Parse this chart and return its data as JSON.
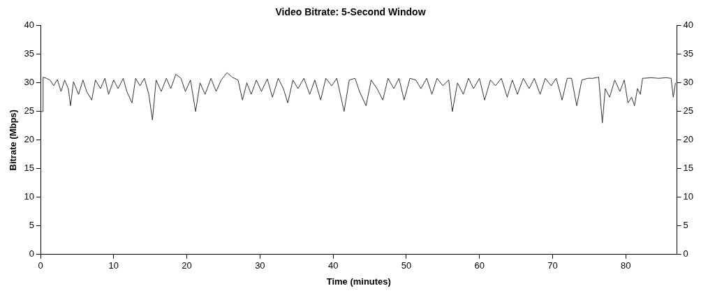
{
  "chart_data": {
    "type": "line",
    "title": "Video Bitrate: 5-Second Window",
    "xlabel": "Time (minutes)",
    "ylabel": "Bitrate (Mbps)",
    "xlim": [
      0,
      87
    ],
    "xticks": [
      0,
      10,
      20,
      30,
      40,
      50,
      60,
      70,
      80
    ],
    "ylim": [
      0,
      40
    ],
    "yticks": [
      0,
      5,
      10,
      15,
      20,
      25,
      30,
      35,
      40
    ],
    "y2lim": [
      0,
      40
    ],
    "y2ticks": [
      0,
      5,
      10,
      15,
      20,
      25,
      30,
      35,
      40
    ],
    "grid": false,
    "legend": false,
    "marker": "none",
    "line_style": "solid",
    "series": [
      {
        "color": "#333333",
        "x": [
          0,
          0.3,
          0.35,
          0.8,
          1.3,
          1.8,
          2.3,
          2.8,
          3.3,
          3.8,
          4.1,
          4.5,
          5.2,
          5.8,
          6.3,
          7,
          7.5,
          8.2,
          8.8,
          9.3,
          10,
          10.6,
          11.3,
          11.8,
          12.5,
          13,
          13.6,
          14.2,
          14.8,
          15.3,
          15.8,
          16.5,
          17.2,
          17.8,
          18.5,
          19.2,
          19.8,
          20.5,
          21.2,
          21.8,
          22.5,
          23.3,
          24,
          24.7,
          25.5,
          26.2,
          27,
          27.6,
          28.2,
          28.8,
          29.5,
          30.2,
          31,
          31.7,
          32.5,
          33.2,
          33.8,
          34.5,
          35.2,
          36,
          36.8,
          37.5,
          38.3,
          39,
          39.8,
          40.5,
          41.5,
          42.2,
          43,
          43.6,
          44.5,
          45.2,
          46,
          46.8,
          47.5,
          48.3,
          49,
          49.7,
          50.5,
          51.3,
          52,
          52.8,
          53.5,
          54.2,
          55,
          55.8,
          56.3,
          57,
          57.8,
          58.5,
          59.2,
          60,
          60.7,
          61.5,
          62.2,
          63,
          63.8,
          64.5,
          65.2,
          66,
          66.8,
          67.5,
          68.3,
          69,
          69.8,
          70.5,
          71.3,
          72,
          72.6,
          73.3,
          74,
          74.8,
          75.5,
          76.3,
          76.8,
          77.2,
          77.8,
          78.5,
          79.2,
          79.8,
          80.3,
          80.8,
          81.2,
          81.6,
          82,
          82.3,
          83.5,
          84.5,
          85.5,
          86.2,
          86.5,
          86.8
        ],
        "values": [
          25,
          25,
          31,
          30.8,
          30.5,
          29.5,
          30.6,
          28.5,
          30.5,
          29,
          26,
          30.2,
          28,
          30.5,
          28.5,
          27,
          30.5,
          29,
          30.8,
          28,
          30.5,
          29,
          30.8,
          28.5,
          26.5,
          30.8,
          29.5,
          30.8,
          28,
          23.5,
          30.5,
          28.5,
          30.8,
          29,
          31.5,
          30.8,
          28.5,
          30.5,
          25,
          30,
          28,
          30.8,
          28.5,
          30.5,
          31.8,
          31,
          30.5,
          27,
          30,
          28,
          30.5,
          28.5,
          30.7,
          27.5,
          30.8,
          29,
          26.5,
          30.5,
          29,
          30.8,
          28,
          30.5,
          27,
          30.8,
          29.5,
          30.8,
          25,
          30.5,
          30.8,
          28.5,
          26,
          30.5,
          29,
          27,
          30.8,
          29,
          30.8,
          27,
          30.8,
          30.5,
          29,
          30.8,
          28,
          30.8,
          29.5,
          30.5,
          25,
          30,
          28,
          30.8,
          29,
          30.8,
          27,
          30.5,
          29.5,
          30.8,
          27.5,
          30.5,
          28,
          30.8,
          29,
          30.8,
          28,
          30.8,
          29.5,
          30.8,
          27,
          30.8,
          30.8,
          26,
          30.5,
          30.8,
          30.8,
          31,
          23,
          29,
          27.5,
          30.5,
          28.5,
          30.5,
          26.5,
          27.5,
          26,
          29,
          28,
          30.8,
          30.9,
          30.8,
          30.9,
          30.8,
          27.5,
          30
        ]
      }
    ]
  }
}
